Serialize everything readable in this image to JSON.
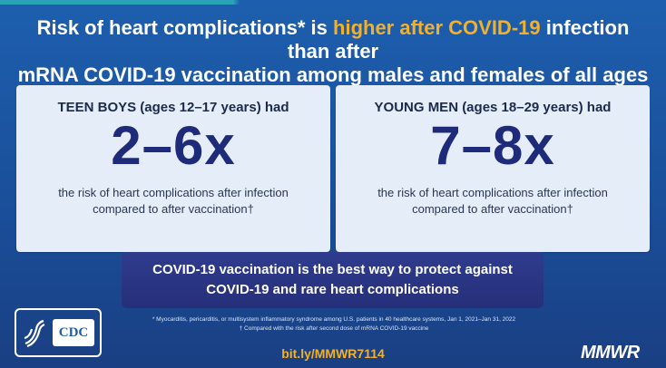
{
  "headline": {
    "part1": "Risk of heart complications* is ",
    "highlight": "higher after COVID-19",
    "part2": " infection than after",
    "line2": "mRNA COVID-19 vaccination among males and females of all ages"
  },
  "cards": [
    {
      "title": "TEEN BOYS (ages 12–17 years) had",
      "figure": "2–6x",
      "desc_line1": "the risk of heart complications after infection",
      "desc_line2": "compared to after vaccination†"
    },
    {
      "title": "YOUNG MEN (ages 18–29 years) had",
      "figure": "7–8x",
      "desc_line1": "the risk of heart complications after infection",
      "desc_line2": "compared to after vaccination†"
    }
  ],
  "callout": {
    "line1": "COVID-19 vaccination is the best way to protect against",
    "line2": "COVID-19 and rare heart complications"
  },
  "footnotes": {
    "line1": "* Myocarditis, pericarditis, or multisystem inflammatory syndrome among U.S. patients in 40 healthcare systems, Jan 1, 2021–Jan 31, 2022",
    "line2": "† Compared with the risk after second dose of mRNA COVID-19 vaccine"
  },
  "link": "bit.ly/MMWR7114",
  "logos": {
    "cdc": "CDC",
    "hhs_icon": "hhs-eagle-icon",
    "brand": "MMWR"
  },
  "colors": {
    "background": "#1d5fae",
    "highlight": "#f3b12b",
    "card_bg": "#e5eef8",
    "figure": "#1e2a7a",
    "callout_bg": "#2f3c8e"
  }
}
